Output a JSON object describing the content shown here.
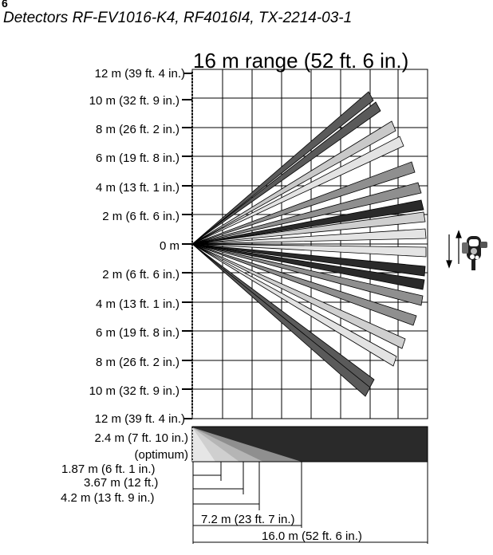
{
  "page_number": "6",
  "subtitle": "Detectors RF-EV1016-K4, RF4016I4, TX-2214-03-1",
  "range_title": "16 m range (52 ft. 6 in.)",
  "y_axis_labels": [
    "12 m (39 ft. 4 in.)",
    "10 m (32 ft. 9 in.)",
    "8 m (26 ft. 2 in.)",
    "6 m (19 ft. 8 in.)",
    "4 m (13 ft. 1 in.)",
    "2 m (6 ft. 6 in.)",
    "0 m",
    "2 m (6 ft. 6 in.)",
    "4 m (13 ft. 1 in.)",
    "6 m (19 ft. 8 in.)",
    "8 m (26 ft. 2 in.)",
    "10 m (32 ft. 9 in.)",
    "12 m (39 ft. 4 in.)"
  ],
  "side_view": {
    "height_label": "2.4 m (7 ft. 10 in.)",
    "height_note": "(optimum)",
    "distances": [
      "1.87 m (6 ft. 1 in.)",
      "3.67 m (12 ft.)",
      "4.2 m (13 ft. 9 in.)",
      "7.2 m (23 ft. 7 in.)",
      "16.0 m (52 ft. 6 in.)"
    ]
  },
  "icons": {
    "mount_arrows": "up-down-arrows-icon",
    "detector": "detector-icon"
  },
  "colors": {
    "beam_dark": "#555555",
    "beam_black": "#2a2a2a",
    "beam_mid": "#8f8f8f",
    "beam_light": "#cfcfcf",
    "beam_pale": "#e4e4e4",
    "grid": "#000000"
  }
}
